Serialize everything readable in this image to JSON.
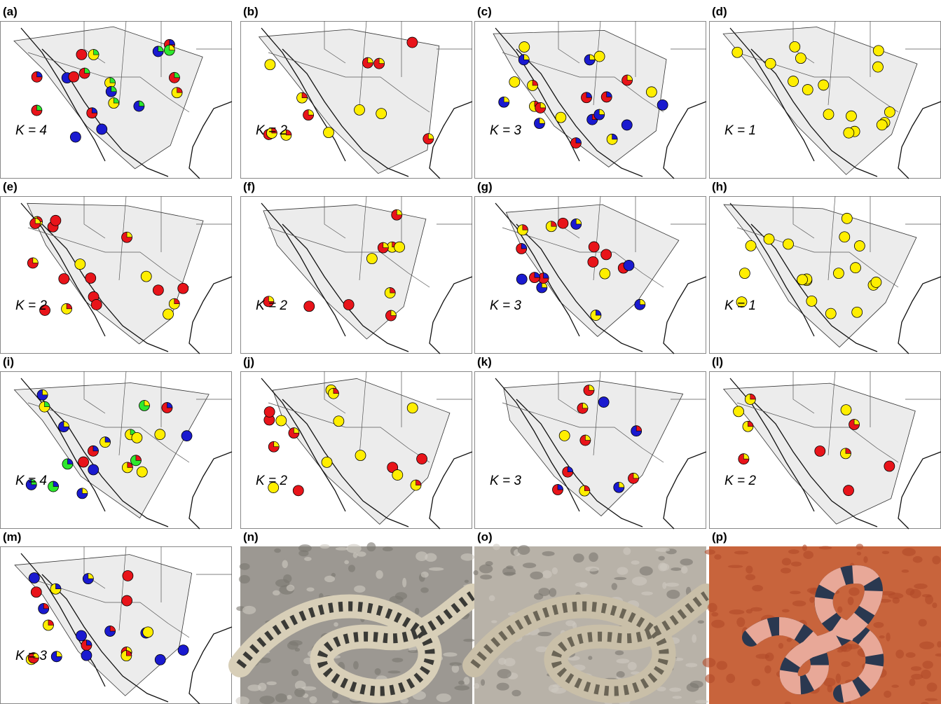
{
  "panels": [
    {
      "label": "(a)",
      "k": "K = 4"
    },
    {
      "label": "(b)",
      "k": "K = 2"
    },
    {
      "label": "(c)",
      "k": "K = 3"
    },
    {
      "label": "(d)",
      "k": "K = 1"
    },
    {
      "label": "(e)",
      "k": "K = 2"
    },
    {
      "label": "(f)",
      "k": "K = 2"
    },
    {
      "label": "(g)",
      "k": "K = 3"
    },
    {
      "label": "(h)",
      "k": "K = 1"
    },
    {
      "label": "(i)",
      "k": "K = 4"
    },
    {
      "label": "(j)",
      "k": "K = 2"
    },
    {
      "label": "(k)",
      "k": "K = 3"
    },
    {
      "label": "(l)",
      "k": "K = 2"
    },
    {
      "label": "(m)",
      "k": "K = 3"
    },
    {
      "label": "(n)"
    },
    {
      "label": "(o)"
    },
    {
      "label": "(p)"
    }
  ]
}
